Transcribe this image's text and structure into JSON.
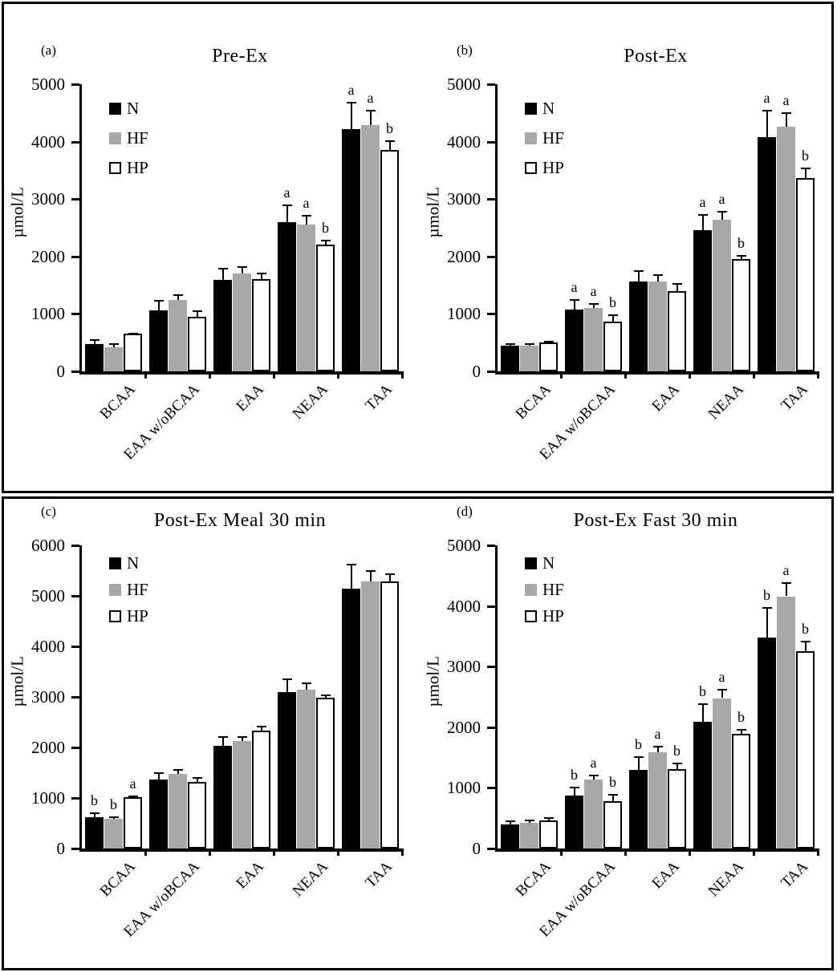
{
  "figure": {
    "description": "Four-panel bar chart figure of plasma amino acid concentrations",
    "colors": {
      "N": "#000000",
      "HF": "#a8a8a8",
      "HP": "#ffffff"
    },
    "axis_color": "#000000"
  },
  "chart_data": [
    {
      "type": "bar",
      "panel_label": "(a)",
      "title": "Pre-Ex",
      "ylabel": "µmol/L",
      "ylim": [
        0,
        5000
      ],
      "ytick_step": 1000,
      "grid": false,
      "legend_position": "top-left",
      "legend": [
        "N",
        "HF",
        "HP"
      ],
      "categories": [
        "BCAA",
        "EAA w/oBCAA",
        "EAA",
        "NEAA",
        "TAA"
      ],
      "series": [
        {
          "name": "N",
          "values": [
            470,
            1060,
            1590,
            2600,
            4220
          ],
          "errors": [
            95,
            190,
            215,
            300,
            470
          ],
          "sig_letters": [
            "",
            "",
            "",
            "a",
            "a"
          ]
        },
        {
          "name": "HF",
          "values": [
            420,
            1240,
            1700,
            2560,
            4290
          ],
          "errors": [
            70,
            105,
            125,
            160,
            260
          ],
          "sig_letters": [
            "",
            "",
            "",
            "a",
            "a"
          ]
        },
        {
          "name": "HP",
          "values": [
            650,
            950,
            1600,
            2210,
            3850
          ],
          "errors": [
            25,
            115,
            120,
            80,
            170
          ],
          "sig_letters": [
            "",
            "",
            "",
            "b",
            "b"
          ]
        }
      ]
    },
    {
      "type": "bar",
      "panel_label": "(b)",
      "title": "Post-Ex",
      "ylabel": "µmol/L",
      "ylim": [
        0,
        5000
      ],
      "ytick_step": 1000,
      "grid": false,
      "legend_position": "top-left",
      "legend": [
        "N",
        "HF",
        "HP"
      ],
      "categories": [
        "BCAA",
        "EAA w/oBCAA",
        "EAA",
        "NEAA",
        "TAA"
      ],
      "series": [
        {
          "name": "N",
          "values": [
            440,
            1080,
            1560,
            2460,
            4080
          ],
          "errors": [
            55,
            175,
            200,
            280,
            480
          ],
          "sig_letters": [
            "",
            "a",
            "",
            "a",
            "a"
          ]
        },
        {
          "name": "HF",
          "values": [
            440,
            1110,
            1570,
            2640,
            4260
          ],
          "errors": [
            45,
            75,
            125,
            150,
            255
          ],
          "sig_letters": [
            "",
            "a",
            "",
            "a",
            "a"
          ]
        },
        {
          "name": "HP",
          "values": [
            500,
            870,
            1390,
            1950,
            3370
          ],
          "errors": [
            25,
            115,
            140,
            75,
            175
          ],
          "sig_letters": [
            "",
            "b",
            "",
            "b",
            "b"
          ]
        }
      ]
    },
    {
      "type": "bar",
      "panel_label": "(c)",
      "title": "Post-Ex Meal 30 min",
      "ylabel": "µmol/L",
      "ylim": [
        0,
        6000
      ],
      "ytick_step": 1000,
      "grid": false,
      "legend_position": "top-left",
      "legend": [
        "N",
        "HF",
        "HP"
      ],
      "categories": [
        "BCAA",
        "EAA w/oBCAA",
        "EAA",
        "NEAA",
        "TAA"
      ],
      "series": [
        {
          "name": "N",
          "values": [
            620,
            1360,
            2030,
            3090,
            5150
          ],
          "errors": [
            90,
            155,
            195,
            275,
            480
          ],
          "sig_letters": [
            "b",
            "",
            "",
            "",
            ""
          ]
        },
        {
          "name": "HF",
          "values": [
            580,
            1470,
            2120,
            3140,
            5280
          ],
          "errors": [
            55,
            105,
            95,
            150,
            235
          ],
          "sig_letters": [
            "b",
            "",
            "",
            "",
            ""
          ]
        },
        {
          "name": "HP",
          "values": [
            1010,
            1310,
            2330,
            2990,
            5290
          ],
          "errors": [
            35,
            100,
            105,
            50,
            160
          ],
          "sig_letters": [
            "a",
            "",
            "",
            "",
            ""
          ]
        }
      ]
    },
    {
      "type": "bar",
      "panel_label": "(d)",
      "title": "Post-Ex Fast 30 min",
      "ylabel": "µmol/L",
      "ylim": [
        0,
        5000
      ],
      "ytick_step": 1000,
      "grid": false,
      "legend_position": "top-left",
      "legend": [
        "N",
        "HF",
        "HP"
      ],
      "categories": [
        "BCAA",
        "EAA w/oBCAA",
        "EAA",
        "NEAA",
        "TAA"
      ],
      "series": [
        {
          "name": "N",
          "values": [
            400,
            870,
            1300,
            2090,
            3480
          ],
          "errors": [
            60,
            150,
            220,
            300,
            500
          ],
          "sig_letters": [
            "",
            "b",
            "b",
            "b",
            "b"
          ]
        },
        {
          "name": "HF",
          "values": [
            420,
            1140,
            1590,
            2480,
            4160
          ],
          "errors": [
            55,
            75,
            100,
            155,
            230
          ],
          "sig_letters": [
            "",
            "a",
            "a",
            "a",
            "a"
          ]
        },
        {
          "name": "HP",
          "values": [
            460,
            780,
            1310,
            1890,
            3260
          ],
          "errors": [
            50,
            125,
            105,
            80,
            170
          ],
          "sig_letters": [
            "",
            "b",
            "b",
            "b",
            "b"
          ]
        }
      ]
    }
  ]
}
